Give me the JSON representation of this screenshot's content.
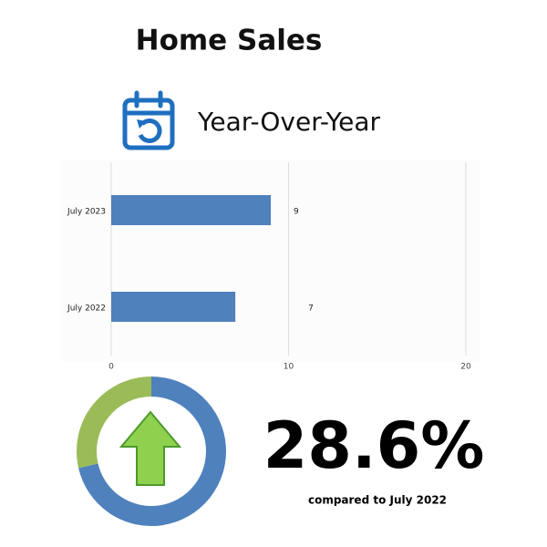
{
  "title": "Home Sales",
  "subtitle": "Year-Over-Year",
  "chart_data": [
    {
      "type": "barh",
      "categories": [
        "July 2023",
        "July 2022"
      ],
      "values": [
        9,
        7
      ],
      "color": "#4f81bd",
      "xlim": [
        0,
        20
      ],
      "xticks": [
        0,
        10,
        20
      ],
      "grid": true
    },
    {
      "type": "donut",
      "series": [
        {
          "color": "#4f81bd",
          "values": [
            71.4
          ]
        },
        {
          "color": "#9bbb59",
          "values": [
            28.6
          ]
        }
      ]
    }
  ],
  "stat": {
    "value": "28.6%",
    "caption": "compared to July 2022"
  }
}
